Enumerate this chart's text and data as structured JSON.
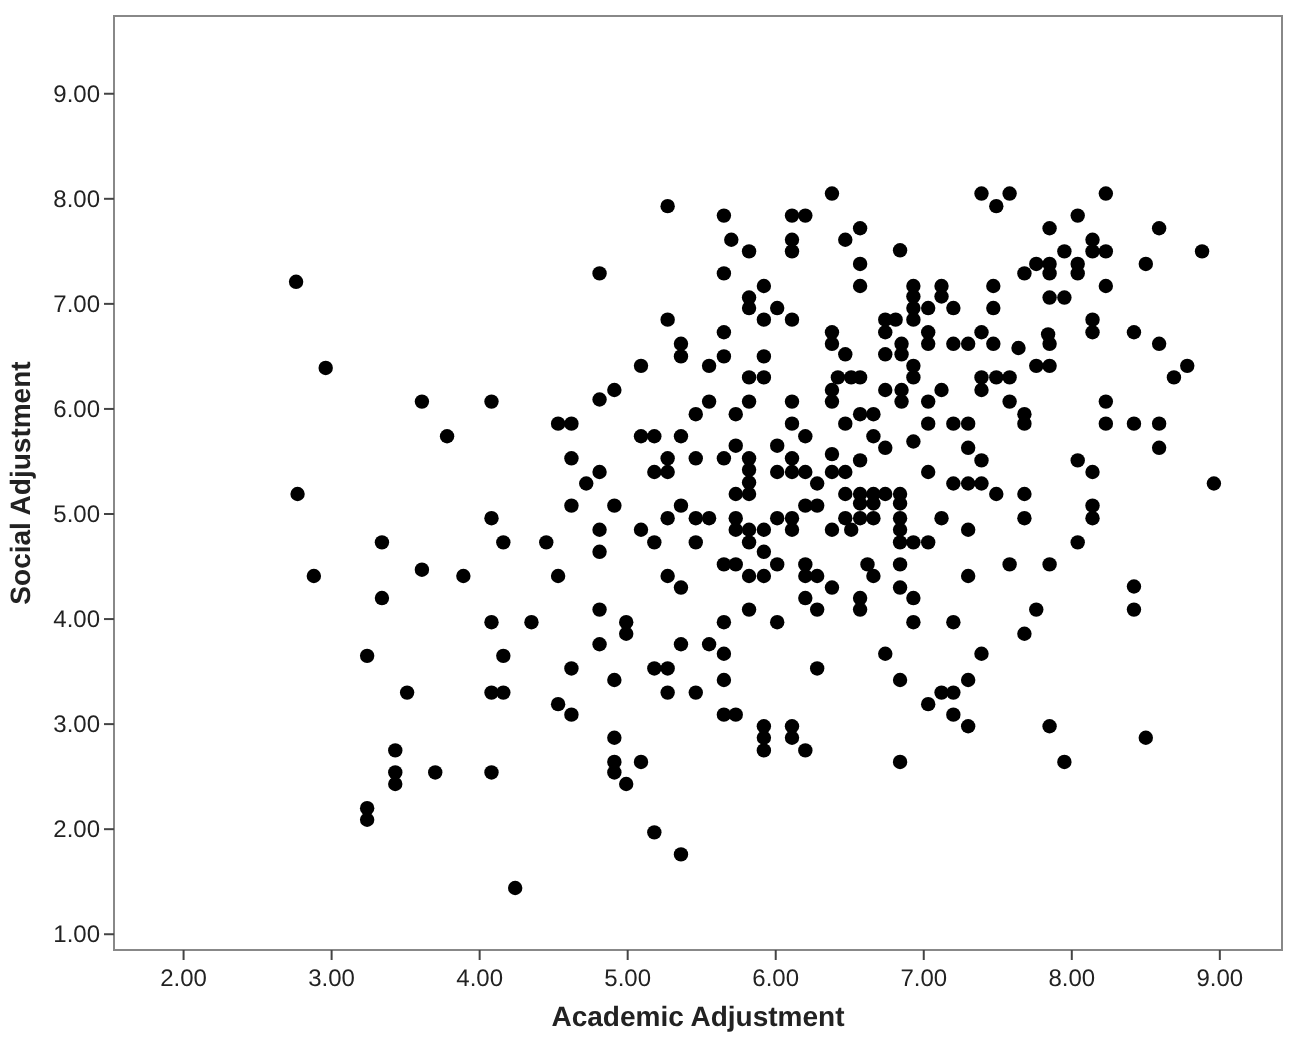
{
  "chart_data": {
    "type": "scatter",
    "xlabel": "Academic Adjustment",
    "ylabel": "Social Adjustment",
    "xlim": [
      1.53,
      9.42
    ],
    "ylim": [
      0.85,
      9.74
    ],
    "xticks": [
      {
        "value": 2,
        "label": "2.00"
      },
      {
        "value": 3,
        "label": "3.00"
      },
      {
        "value": 4,
        "label": "4.00"
      },
      {
        "value": 5,
        "label": "5.00"
      },
      {
        "value": 6,
        "label": "6.00"
      },
      {
        "value": 7,
        "label": "7.00"
      },
      {
        "value": 8,
        "label": "8.00"
      },
      {
        "value": 9,
        "label": "9.00"
      }
    ],
    "yticks": [
      {
        "value": 1,
        "label": "1.00"
      },
      {
        "value": 2,
        "label": "2.00"
      },
      {
        "value": 3,
        "label": "3.00"
      },
      {
        "value": 4,
        "label": "4.00"
      },
      {
        "value": 5,
        "label": "5.00"
      },
      {
        "value": 6,
        "label": "6.00"
      },
      {
        "value": 7,
        "label": "7.00"
      },
      {
        "value": 8,
        "label": "8.00"
      },
      {
        "value": 9,
        "label": "9.00"
      }
    ],
    "grid": false,
    "marker": "circle",
    "series": [
      {
        "color": "#000000",
        "x": [
          2.76,
          2.96,
          3.61,
          4.08,
          3.78,
          2.77,
          4.08,
          3.34,
          4.16,
          2.88,
          3.61,
          3.89,
          3.34,
          4.08,
          3.24,
          4.16,
          3.51,
          4.08,
          4.16,
          3.43,
          3.43,
          3.43,
          3.7,
          4.08,
          3.24,
          3.24,
          4.24,
          5.27,
          5.65,
          6.11,
          5.7,
          5.82,
          6.11,
          6.11,
          4.81,
          5.65,
          5.92,
          5.82,
          5.82,
          6.01,
          5.92,
          6.11,
          5.27,
          5.65,
          5.36,
          5.36,
          5.65,
          5.92,
          5.55,
          5.09,
          5.82,
          5.92,
          4.81,
          4.91,
          5.55,
          5.46,
          5.73,
          5.82,
          6.11,
          6.11,
          4.53,
          4.62,
          5.09,
          5.18,
          5.36,
          5.73,
          6.01,
          4.62,
          4.81,
          4.72,
          5.27,
          5.18,
          5.27,
          5.46,
          5.65,
          5.82,
          5.82,
          5.82,
          5.82,
          5.73,
          6.01,
          6.11,
          6.11,
          4.62,
          4.91,
          5.36,
          5.27,
          5.46,
          5.55,
          5.73,
          5.73,
          5.82,
          5.92,
          6.01,
          6.11,
          6.11,
          4.81,
          5.09,
          5.18,
          4.45,
          4.81,
          5.46,
          5.82,
          5.92,
          5.65,
          5.73,
          6.01,
          5.82,
          5.92,
          4.53,
          5.27,
          5.36,
          4.81,
          5.82,
          5.65,
          6.01,
          4.35,
          4.99,
          4.99,
          4.81,
          5.36,
          5.55,
          5.65,
          4.62,
          4.91,
          5.18,
          5.27,
          5.27,
          5.46,
          5.65,
          4.53,
          4.62,
          5.65,
          5.73,
          5.92,
          5.92,
          5.92,
          6.11,
          6.11,
          4.91,
          4.91,
          4.91,
          5.09,
          4.99,
          5.18,
          5.36,
          6.38,
          7.39,
          7.58,
          7.49,
          6.2,
          6.47,
          6.57,
          6.84,
          6.57,
          6.57,
          6.93,
          6.93,
          6.93,
          6.93,
          7.12,
          7.12,
          7.03,
          7.2,
          7.47,
          7.47,
          7.68,
          7.76,
          6.74,
          6.81,
          6.74,
          6.38,
          6.38,
          6.85,
          7.03,
          7.03,
          7.2,
          7.3,
          7.39,
          7.47,
          7.64,
          6.47,
          6.74,
          6.85,
          6.93,
          6.93,
          7.76,
          6.42,
          6.51,
          6.57,
          6.38,
          6.38,
          6.74,
          6.85,
          6.85,
          7.12,
          7.39,
          7.49,
          7.58,
          7.39,
          7.58,
          7.03,
          7.68,
          7.68,
          6.57,
          6.66,
          6.2,
          6.47,
          7.03,
          7.2,
          7.3,
          6.66,
          6.74,
          6.93,
          7.3,
          7.39,
          6.38,
          6.38,
          6.2,
          6.57,
          6.47,
          6.28,
          7.03,
          7.2,
          7.3,
          7.39,
          7.49,
          7.68,
          6.47,
          6.57,
          6.66,
          6.74,
          6.84,
          6.57,
          6.66,
          6.84,
          6.2,
          6.28,
          6.47,
          6.57,
          6.66,
          6.84,
          6.84,
          6.84,
          6.93,
          7.03,
          6.38,
          6.51,
          7.12,
          7.3,
          7.68,
          6.2,
          6.2,
          6.28,
          6.38,
          6.62,
          6.66,
          6.84,
          7.3,
          7.58,
          6.84,
          6.2,
          6.28,
          6.57,
          6.57,
          6.93,
          6.93,
          7.2,
          7.76,
          7.68,
          6.74,
          7.39,
          6.28,
          6.84,
          7.3,
          7.12,
          7.2,
          7.03,
          7.2,
          7.3,
          6.2,
          6.84,
          8.23,
          8.04,
          7.85,
          8.59,
          8.88,
          7.95,
          8.14,
          8.14,
          8.23,
          7.85,
          7.85,
          8.04,
          8.04,
          8.5,
          8.23,
          7.85,
          7.95,
          8.14,
          8.14,
          7.84,
          7.85,
          8.42,
          8.59,
          7.85,
          8.78,
          8.69,
          8.23,
          8.23,
          8.42,
          8.59,
          8.59,
          8.04,
          8.14,
          8.96,
          8.14,
          8.14,
          8.04,
          7.85,
          8.42,
          8.42,
          7.85,
          7.95,
          8.5
        ],
        "values": [
          7.21,
          6.39,
          6.07,
          6.07,
          5.74,
          5.19,
          4.96,
          4.73,
          4.73,
          4.41,
          4.47,
          4.41,
          4.2,
          3.97,
          3.65,
          3.65,
          3.3,
          3.3,
          3.3,
          2.75,
          2.54,
          2.43,
          2.54,
          2.54,
          2.2,
          2.09,
          1.44,
          7.93,
          7.84,
          7.84,
          7.61,
          7.5,
          7.61,
          7.5,
          7.29,
          7.29,
          7.17,
          7.06,
          6.96,
          6.96,
          6.85,
          6.85,
          6.85,
          6.73,
          6.62,
          6.5,
          6.5,
          6.5,
          6.41,
          6.41,
          6.3,
          6.3,
          6.09,
          6.18,
          6.07,
          5.95,
          5.95,
          6.07,
          6.07,
          5.86,
          5.86,
          5.86,
          5.74,
          5.74,
          5.74,
          5.65,
          5.65,
          5.53,
          5.4,
          5.29,
          5.53,
          5.4,
          5.4,
          5.53,
          5.53,
          5.53,
          5.42,
          5.3,
          5.19,
          5.19,
          5.4,
          5.4,
          5.53,
          5.08,
          5.08,
          5.08,
          4.96,
          4.96,
          4.96,
          4.96,
          4.85,
          4.85,
          4.85,
          4.96,
          4.96,
          4.85,
          4.85,
          4.85,
          4.73,
          4.73,
          4.64,
          4.73,
          4.73,
          4.64,
          4.52,
          4.52,
          4.52,
          4.41,
          4.41,
          4.41,
          4.41,
          4.3,
          4.09,
          4.09,
          3.97,
          3.97,
          3.97,
          3.97,
          3.86,
          3.76,
          3.76,
          3.76,
          3.67,
          3.53,
          3.42,
          3.53,
          3.53,
          3.3,
          3.3,
          3.42,
          3.19,
          3.09,
          3.09,
          3.09,
          2.98,
          2.87,
          2.75,
          2.98,
          2.87,
          2.87,
          2.64,
          2.54,
          2.64,
          2.43,
          1.97,
          1.76,
          8.05,
          8.05,
          8.05,
          7.93,
          7.84,
          7.61,
          7.72,
          7.51,
          7.38,
          7.17,
          7.17,
          7.07,
          6.96,
          6.85,
          7.17,
          7.07,
          6.96,
          6.96,
          7.17,
          6.96,
          7.29,
          7.38,
          6.85,
          6.85,
          6.73,
          6.73,
          6.62,
          6.62,
          6.73,
          6.62,
          6.62,
          6.62,
          6.73,
          6.62,
          6.58,
          6.52,
          6.52,
          6.52,
          6.41,
          6.3,
          6.41,
          6.3,
          6.3,
          6.3,
          6.18,
          6.07,
          6.18,
          6.18,
          6.07,
          6.18,
          6.3,
          6.3,
          6.3,
          6.18,
          6.07,
          6.07,
          5.95,
          5.86,
          5.95,
          5.95,
          5.74,
          5.86,
          5.86,
          5.86,
          5.86,
          5.74,
          5.63,
          5.69,
          5.63,
          5.51,
          5.57,
          5.4,
          5.4,
          5.51,
          5.4,
          5.29,
          5.4,
          5.29,
          5.29,
          5.29,
          5.19,
          5.19,
          5.19,
          5.19,
          5.19,
          5.19,
          5.19,
          5.1,
          5.1,
          5.1,
          5.08,
          5.08,
          4.96,
          4.96,
          4.96,
          4.96,
          4.85,
          4.73,
          4.73,
          4.73,
          4.85,
          4.85,
          4.96,
          4.85,
          4.96,
          4.52,
          4.41,
          4.41,
          4.3,
          4.52,
          4.41,
          4.52,
          4.41,
          4.52,
          4.3,
          4.2,
          4.09,
          4.2,
          4.09,
          4.2,
          3.97,
          3.97,
          4.09,
          3.86,
          3.67,
          3.67,
          3.53,
          3.42,
          3.42,
          3.3,
          3.3,
          3.19,
          3.09,
          2.98,
          2.75,
          2.64,
          8.05,
          7.84,
          7.72,
          7.72,
          7.5,
          7.5,
          7.61,
          7.5,
          7.5,
          7.38,
          7.29,
          7.38,
          7.29,
          7.38,
          7.17,
          7.06,
          7.06,
          6.85,
          6.73,
          6.71,
          6.62,
          6.73,
          6.62,
          6.41,
          6.41,
          6.3,
          6.07,
          5.86,
          5.86,
          5.86,
          5.63,
          5.51,
          5.4,
          5.29,
          5.08,
          4.96,
          4.73,
          4.52,
          4.31,
          4.09,
          2.98,
          2.64,
          2.87
        ]
      }
    ]
  }
}
